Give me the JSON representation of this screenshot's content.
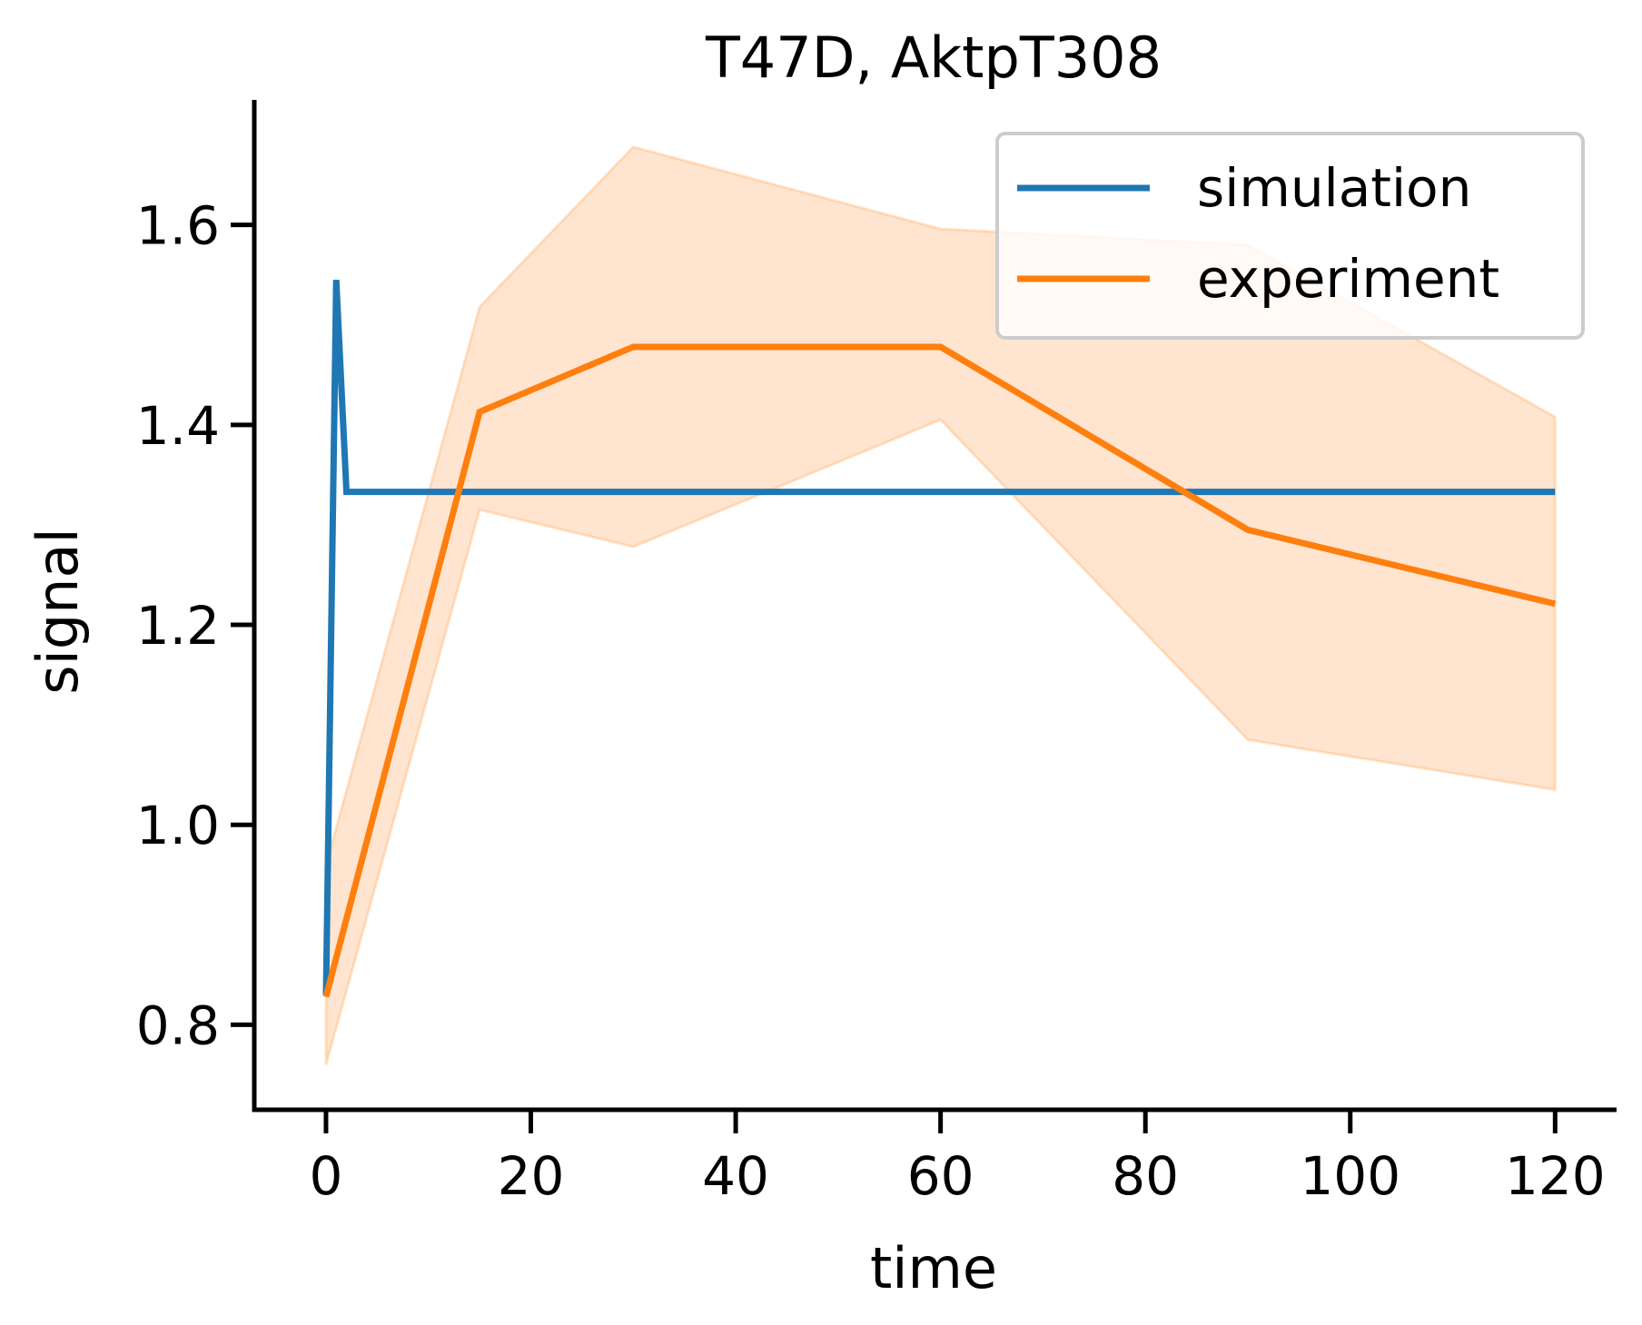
{
  "chart_data": {
    "type": "line",
    "title": "T47D, AktpT308",
    "xlabel": "time",
    "ylabel": "signal",
    "xlim": [
      -7,
      126
    ],
    "ylim": [
      0.715,
      1.725
    ],
    "x_ticks": [
      0,
      20,
      40,
      60,
      80,
      100,
      120
    ],
    "y_ticks": [
      0.8,
      1.0,
      1.2,
      1.4,
      1.6
    ],
    "x_tick_labels": [
      "0",
      "20",
      "40",
      "60",
      "80",
      "100",
      "120"
    ],
    "y_tick_labels": [
      "0.8",
      "1.0",
      "1.2",
      "1.4",
      "1.6"
    ],
    "grid": false,
    "legend_position": "top-right",
    "series": [
      {
        "name": "simulation",
        "color": "#1f77b4",
        "x": [
          0,
          1,
          2,
          120
        ],
        "y": [
          0.83,
          1.545,
          1.333,
          1.333
        ]
      },
      {
        "name": "experiment",
        "color": "#ff7f0e",
        "x": [
          0,
          15,
          30,
          60,
          90,
          120
        ],
        "y": [
          0.828,
          1.413,
          1.478,
          1.478,
          1.295,
          1.221
        ],
        "band_lower": [
          0.76,
          1.315,
          1.278,
          1.405,
          1.085,
          1.035
        ],
        "band_upper": [
          0.96,
          1.518,
          1.678,
          1.596,
          1.58,
          1.408
        ]
      }
    ]
  }
}
